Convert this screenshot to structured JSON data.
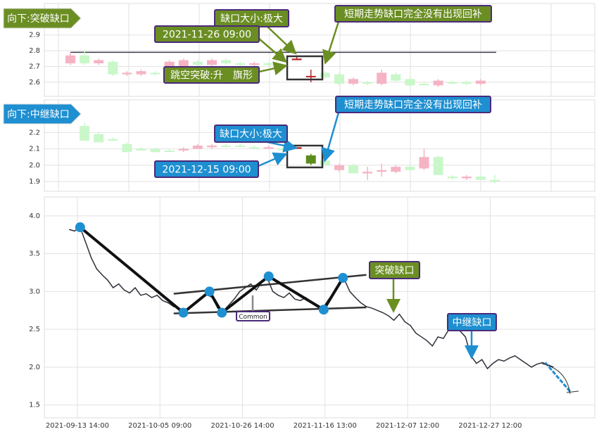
{
  "chart_data": [
    {
      "type": "candlestick",
      "ylim": [
        2.51,
        3.1
      ],
      "yticks": [
        2.6,
        2.7,
        2.8,
        2.9
      ],
      "grid": true,
      "hline": 2.79,
      "hline_color": "#3a3a4a",
      "open": [
        2.72,
        2.77,
        2.72,
        2.73,
        2.65,
        2.65,
        2.66,
        2.68,
        2.69,
        2.73,
        2.71,
        2.74,
        2.72,
        2.71,
        2.72,
        2.71,
        2.74,
        2.64,
        2.66,
        2.65,
        2.59,
        2.6,
        2.59,
        2.65,
        2.62,
        2.59,
        2.58,
        2.6,
        2.6,
        2.59
      ],
      "high": [
        2.79,
        2.8,
        2.75,
        2.74,
        2.67,
        2.68,
        2.67,
        2.74,
        2.75,
        2.74,
        2.75,
        2.75,
        2.73,
        2.73,
        2.73,
        2.72,
        2.76,
        2.68,
        2.67,
        2.66,
        2.63,
        2.61,
        2.68,
        2.66,
        2.63,
        2.6,
        2.62,
        2.61,
        2.61,
        2.62
      ],
      "low": [
        2.71,
        2.71,
        2.71,
        2.64,
        2.64,
        2.64,
        2.64,
        2.67,
        2.68,
        2.7,
        2.7,
        2.71,
        2.7,
        2.7,
        2.7,
        2.69,
        2.74,
        2.6,
        2.62,
        2.58,
        2.58,
        2.58,
        2.58,
        2.6,
        2.57,
        2.58,
        2.57,
        2.59,
        2.58,
        2.58
      ],
      "close": [
        2.77,
        2.72,
        2.74,
        2.65,
        2.66,
        2.67,
        2.65,
        2.73,
        2.74,
        2.71,
        2.74,
        2.72,
        2.71,
        2.72,
        2.71,
        2.71,
        2.75,
        2.64,
        2.63,
        2.59,
        2.62,
        2.59,
        2.66,
        2.61,
        2.58,
        2.58,
        2.61,
        2.6,
        2.59,
        2.61
      ],
      "colors": [
        "#f5b3c3",
        "#c9f7c9",
        "#f5b3c3",
        "#c9f7c9",
        "#f5b3c3",
        "#f5b3c3",
        "#c9f7c9",
        "#f5b3c3",
        "#f5b3c3",
        "#c9f7c9",
        "#f5b3c3",
        "#c9f7c9",
        "#c9f7c9",
        "#f5b3c3",
        "#c9f7c9",
        "#c9f7c9",
        "#b5242a",
        "#b5242a",
        "#c9f7c9",
        "#c9f7c9",
        "#f5b3c3",
        "#c9f7c9",
        "#f5b3c3",
        "#c9f7c9",
        "#c9f7c9",
        "#c9f7c9",
        "#f5b3c3",
        "#c9f7c9",
        "#c9f7c9",
        "#f5b3c3"
      ],
      "annotations": [
        {
          "text": "向下:突破缺口",
          "color": "#6b8e23"
        },
        {
          "text": "缺口大小:极大",
          "color": "#6b8e23"
        },
        {
          "text": "2021-11-26 09:00",
          "color": "#6b8e23"
        },
        {
          "text": "跳空突破:升　旗形",
          "color": "#6b8e23"
        },
        {
          "text": "短期走势缺口完全没有出现回补",
          "color": "#6b8e23"
        }
      ]
    },
    {
      "type": "candlestick",
      "ylim": [
        1.84,
        2.4
      ],
      "yticks": [
        1.9,
        {
          "value": 2,
          "label": "2.0"
        },
        2.1,
        2.2
      ],
      "grid": true,
      "open": [
        2.24,
        2.19,
        2.16,
        2.13,
        2.1,
        2.1,
        2.09,
        2.09,
        2.1,
        2.11,
        2.12,
        2.12,
        2.11,
        2.11,
        2.1,
        2.1,
        2.06,
        2.03,
        1.97,
        2.0,
        1.95,
        1.96,
        1.96,
        1.99,
        1.98,
        2.05,
        1.93,
        1.92,
        1.93,
        1.91
      ],
      "high": [
        2.26,
        2.2,
        2.17,
        2.14,
        2.11,
        2.11,
        2.1,
        2.11,
        2.13,
        2.13,
        2.13,
        2.13,
        2.12,
        2.12,
        2.11,
        2.11,
        2.07,
        2.04,
        2.01,
        2.01,
        1.99,
        2.01,
        2.0,
        2.0,
        2.1,
        2.06,
        1.94,
        1.94,
        1.94,
        1.94
      ],
      "low": [
        2.15,
        2.14,
        2.15,
        2.08,
        2.09,
        2.08,
        2.08,
        2.08,
        2.1,
        2.1,
        2.11,
        2.11,
        2.1,
        2.1,
        2.09,
        2.1,
        2.0,
        2.0,
        1.96,
        1.95,
        1.91,
        1.93,
        1.95,
        1.97,
        1.97,
        1.94,
        1.91,
        1.91,
        1.91,
        1.89
      ],
      "close": [
        2.15,
        2.14,
        2.15,
        2.08,
        2.09,
        2.08,
        2.09,
        2.1,
        2.12,
        2.12,
        2.12,
        2.12,
        2.11,
        2.11,
        2.1,
        2.11,
        2.01,
        2.0,
        2.0,
        1.95,
        1.96,
        1.97,
        1.99,
        1.97,
        2.05,
        1.94,
        1.92,
        1.93,
        1.91,
        1.9
      ],
      "colors": [
        "#c9f7c9",
        "#c9f7c9",
        "#c9f7c9",
        "#c9f7c9",
        "#c9f7c9",
        "#c9f7c9",
        "#c9f7c9",
        "#f5b3c3",
        "#f5b3c3",
        "#f5b3c3",
        "#c9f7c9",
        "#c9f7c9",
        "#c9f7c9",
        "#f5b3c3",
        "#c9f7c9",
        "#b5242a",
        "#5d8c1e",
        "#c9f7c9",
        "#f5b3c3",
        "#c9f7c9",
        "#f5b3c3",
        "#f5b3c3",
        "#f5b3c3",
        "#c9f7c9",
        "#f5b3c3",
        "#c9f7c9",
        "#c9f7c9",
        "#f5b3c3",
        "#c9f7c9",
        "#c9f7c9"
      ],
      "annotations": [
        {
          "text": "向下:中继缺口",
          "color": "#1e8fd0"
        },
        {
          "text": "缺口大小:极大",
          "color": "#1e8fd0"
        },
        {
          "text": "2021-12-15 09:00",
          "color": "#1e8fd0"
        },
        {
          "text": "短期走势缺口完全没有出现回补",
          "color": "#1e8fd0"
        }
      ]
    },
    {
      "type": "line",
      "color": "#2f2f3a",
      "grid": true,
      "xlim": [
        0,
        200
      ],
      "ylim": [
        1.33,
        4.25
      ],
      "xticks": [
        {
          "value": 12,
          "label": "2021-09-13 14:00"
        },
        {
          "value": 42,
          "label": "2021-10-05 09:00"
        },
        {
          "value": 72,
          "label": "2021-10-26 14:00"
        },
        {
          "value": 102,
          "label": "2021-11-16 13:00"
        },
        {
          "value": 132,
          "label": "2021-12-07 12:00"
        },
        {
          "value": 162,
          "label": "2021-12-27 12:00"
        }
      ],
      "yticks": [
        1.5,
        {
          "value": 2,
          "label": "2.0"
        },
        2.5,
        {
          "value": 3,
          "label": "3.0"
        },
        3.5,
        {
          "value": 4,
          "label": "4.0"
        }
      ],
      "x": [
        9,
        11,
        13,
        15,
        17,
        19,
        21,
        23,
        25,
        27,
        29,
        31,
        33,
        35,
        37,
        39,
        41,
        43,
        45,
        47,
        49,
        51,
        53,
        55,
        57,
        59,
        61,
        63,
        65,
        67,
        69,
        71,
        73,
        75,
        77,
        79,
        81,
        83,
        85,
        87,
        89,
        91,
        93,
        95,
        97,
        99,
        101,
        103,
        105,
        107,
        109,
        111,
        113,
        115,
        117,
        119,
        121,
        123,
        125,
        127,
        129,
        131,
        133,
        135,
        137,
        139,
        141,
        143,
        145,
        147,
        149,
        151,
        153,
        155,
        157,
        159,
        161,
        163,
        165,
        167,
        169,
        171,
        173,
        175,
        177,
        179,
        181,
        183,
        185
      ],
      "values": [
        3.82,
        3.8,
        3.85,
        3.65,
        3.45,
        3.3,
        3.22,
        3.15,
        3.05,
        3.1,
        3.02,
        2.98,
        3.05,
        2.95,
        2.97,
        2.92,
        2.95,
        2.88,
        2.85,
        2.8,
        2.78,
        2.74,
        2.8,
        2.86,
        2.9,
        2.96,
        2.92,
        2.78,
        2.74,
        2.82,
        2.9,
        3.0,
        3.05,
        3.1,
        3.02,
        3.12,
        3.18,
        3.0,
        2.95,
        2.92,
        2.98,
        2.9,
        2.88,
        2.92,
        2.85,
        2.8,
        2.77,
        2.88,
        2.98,
        3.1,
        3.16,
        3.0,
        2.92,
        2.85,
        2.8,
        2.78,
        2.75,
        2.72,
        2.68,
        2.62,
        2.7,
        2.6,
        2.55,
        2.45,
        2.4,
        2.35,
        2.28,
        2.4,
        2.38,
        2.5,
        2.55,
        2.48,
        2.4,
        2.15,
        2.05,
        2.1,
        1.98,
        2.05,
        2.1,
        2.08,
        2.12,
        2.15,
        2.1,
        2.05,
        2.0,
        2.04,
        2.06,
        2.03,
        2.0
      ],
      "pivots": {
        "color": "#1e8fd0",
        "x": [
          13,
          50.5,
          60,
          64.5,
          81.5,
          101.5,
          108.5
        ],
        "values": [
          3.85,
          2.72,
          3.0,
          2.72,
          3.2,
          2.76,
          3.18
        ]
      },
      "trendlines": [
        {
          "x": [
            47,
            117
          ],
          "values": [
            2.97,
            3.22
          ]
        },
        {
          "x": [
            47,
            117
          ],
          "values": [
            2.71,
            2.79
          ]
        }
      ],
      "projection": {
        "color": "#1e8fd0",
        "x": [
          182,
          191
        ],
        "values": [
          2.06,
          1.68
        ]
      },
      "annotations": [
        {
          "text": "突破缺口",
          "color": "#6b8e23"
        },
        {
          "text": "中继缺口",
          "color": "#1e8fd0"
        },
        {
          "text": "Common",
          "color": "#ffffff"
        }
      ]
    }
  ]
}
